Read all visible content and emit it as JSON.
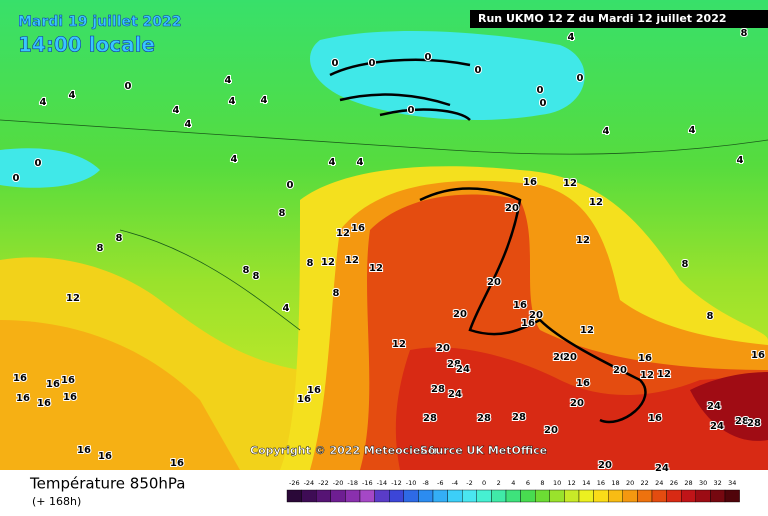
{
  "header": {
    "date": "Mardi 19 juillet 2022",
    "time": "14:00 locale",
    "run": "Run UKMO 12 Z du Mardi 12 juillet 2022"
  },
  "map": {
    "copyright": "Copyright © 2022 Meteociel.fr",
    "source": "Source UK MetOffice",
    "contour_labels": [
      0,
      0,
      0,
      0,
      0,
      0,
      0,
      0,
      0,
      0,
      0,
      0,
      4,
      4,
      4,
      4,
      4,
      4,
      4,
      4,
      4,
      4,
      4,
      4,
      4,
      4,
      8,
      8,
      8,
      8,
      8,
      8,
      8,
      4,
      8,
      12,
      12,
      12,
      12,
      12,
      12,
      12,
      12,
      12,
      12,
      16,
      16,
      20,
      20,
      20,
      20,
      20,
      28,
      24,
      28,
      24,
      28,
      28,
      28,
      20,
      20,
      16,
      24,
      24,
      28,
      28,
      20,
      20,
      20,
      12,
      12,
      16,
      16,
      8,
      8,
      16,
      16,
      16,
      16,
      16,
      16,
      16,
      16,
      16,
      16,
      16,
      20,
      24,
      16,
      16,
      16
    ]
  },
  "legend": {
    "title": "Température 850hPa",
    "lead": "(+ 168h)",
    "ticks": [
      -26,
      -24,
      -22,
      -20,
      -18,
      -16,
      -14,
      -12,
      -10,
      -8,
      -6,
      -4,
      -2,
      0,
      2,
      4,
      6,
      8,
      10,
      12,
      14,
      16,
      18,
      20,
      22,
      24,
      26,
      28,
      30,
      32,
      34
    ],
    "colors": [
      "#2a0838",
      "#3e0c55",
      "#561474",
      "#6e1e92",
      "#8a30ae",
      "#a548c6",
      "#5a3cc8",
      "#3c46d8",
      "#2e6ae6",
      "#2c8cf0",
      "#34aef6",
      "#3ccff8",
      "#4ae6f0",
      "#46f0d2",
      "#40eaa8",
      "#3ee27c",
      "#48dc50",
      "#6cdc34",
      "#9ae22c",
      "#c8ea28",
      "#ecf020",
      "#fadc18",
      "#f8bc14",
      "#f49810",
      "#ee720e",
      "#e44c10",
      "#d82a14",
      "#c01418",
      "#9c0c14",
      "#760810",
      "#50040a"
    ]
  }
}
